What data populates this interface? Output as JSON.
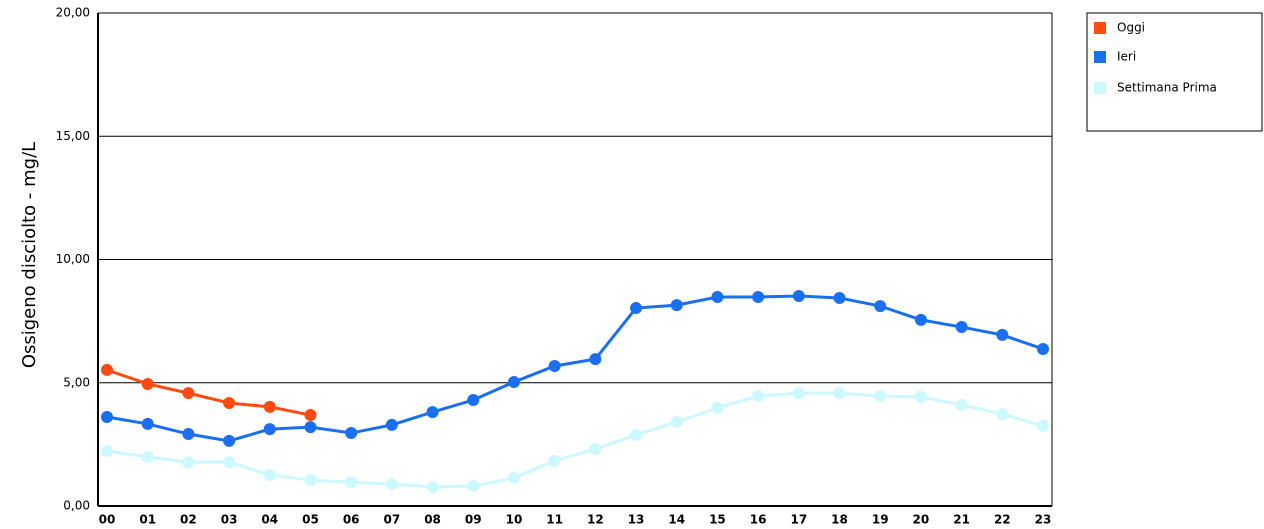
{
  "chart_data": {
    "type": "line",
    "y_label": "Ossigeno disciolto - mg/L",
    "categories": [
      "00",
      "01",
      "02",
      "03",
      "04",
      "05",
      "06",
      "07",
      "08",
      "09",
      "10",
      "11",
      "12",
      "13",
      "14",
      "15",
      "16",
      "17",
      "18",
      "19",
      "20",
      "21",
      "22",
      "23"
    ],
    "series": [
      {
        "name": "Oggi",
        "color": "#ff4a12",
        "values": [
          5.52,
          4.95,
          4.58,
          4.18,
          4.02,
          3.69,
          null,
          null,
          null,
          null,
          null,
          null,
          null,
          null,
          null,
          null,
          null,
          null,
          null,
          null,
          null,
          null,
          null,
          null
        ]
      },
      {
        "name": "Ieri",
        "color": "#1a6ff0",
        "values": [
          3.61,
          3.33,
          2.92,
          2.64,
          3.12,
          3.2,
          2.96,
          3.29,
          3.81,
          4.3,
          5.03,
          5.68,
          5.96,
          8.03,
          8.15,
          8.48,
          8.48,
          8.52,
          8.44,
          8.11,
          7.55,
          7.26,
          6.94,
          6.37
        ]
      },
      {
        "name": "Settimana Prima",
        "color": "#ccf8ff",
        "values": [
          2.23,
          1.99,
          1.78,
          1.78,
          1.26,
          1.05,
          0.97,
          0.89,
          0.77,
          0.81,
          1.14,
          1.83,
          2.31,
          2.88,
          3.41,
          3.98,
          4.46,
          4.58,
          4.58,
          4.46,
          4.42,
          4.1,
          3.73,
          3.25
        ]
      }
    ],
    "ylim": [
      0,
      20
    ],
    "yticks": [
      {
        "value": 0,
        "label": "0,00"
      },
      {
        "value": 5,
        "label": "5,00"
      },
      {
        "value": 10,
        "label": "10,00"
      },
      {
        "value": 15,
        "label": "15,00"
      },
      {
        "value": 20,
        "label": "20,00"
      }
    ],
    "grid": true,
    "legend": "right"
  }
}
